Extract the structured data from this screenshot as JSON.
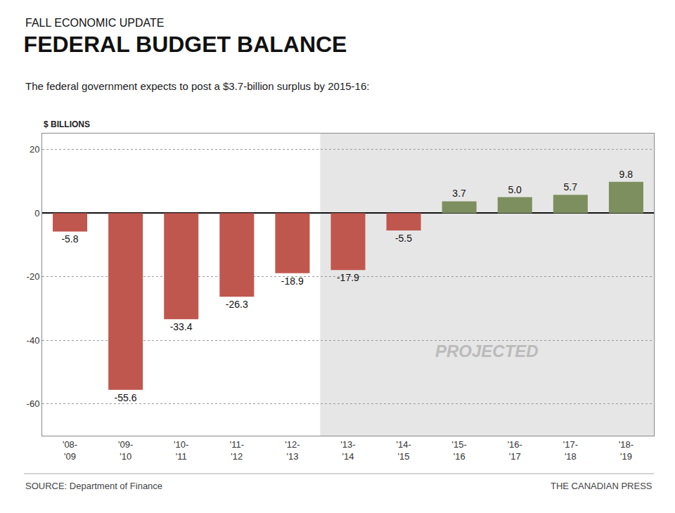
{
  "chart_data": {
    "type": "bar",
    "title": "FEDERAL BUDGET BALANCE",
    "subtitle": "The federal government expects to post a $3.7-billion surplus by 2015-16:",
    "ylabel": "$ BILLIONS",
    "annotations": [
      "FALL ECONOMIC UPDATE",
      "PROJECTED",
      "SOURCE: Department of Finance",
      "THE CANADIAN PRESS"
    ],
    "categories": [
      "'08-\n'09",
      "'09-\n'10",
      "'10-\n'11",
      "'11-\n'12",
      "'12-\n'13",
      "'13-\n'14",
      "'14-\n'15",
      "'15-\n'16",
      "'16-\n'17",
      "'17-\n'18",
      "'18-\n'19"
    ],
    "values": [
      -5.8,
      -55.6,
      -33.4,
      -26.3,
      -18.9,
      -17.9,
      -5.5,
      3.7,
      5.0,
      5.7,
      9.8
    ],
    "value_labels": [
      "-5.8",
      "-55.6",
      "-33.4",
      "-26.3",
      "-18.9",
      "-17.9",
      "-5.5",
      "3.7",
      "5.0",
      "5.7",
      "9.8"
    ],
    "data_labels": true,
    "colors": [
      "#c0574e",
      "#c0574e",
      "#c0574e",
      "#c0574e",
      "#c0574e",
      "#c0574e",
      "#c0574e",
      "#7d8f5e",
      "#7d8f5e",
      "#7d8f5e",
      "#7d8f5e"
    ],
    "ylim": [
      -70,
      25
    ],
    "yticks": [
      20,
      0,
      -20,
      -40,
      -60
    ],
    "grid": true
  }
}
